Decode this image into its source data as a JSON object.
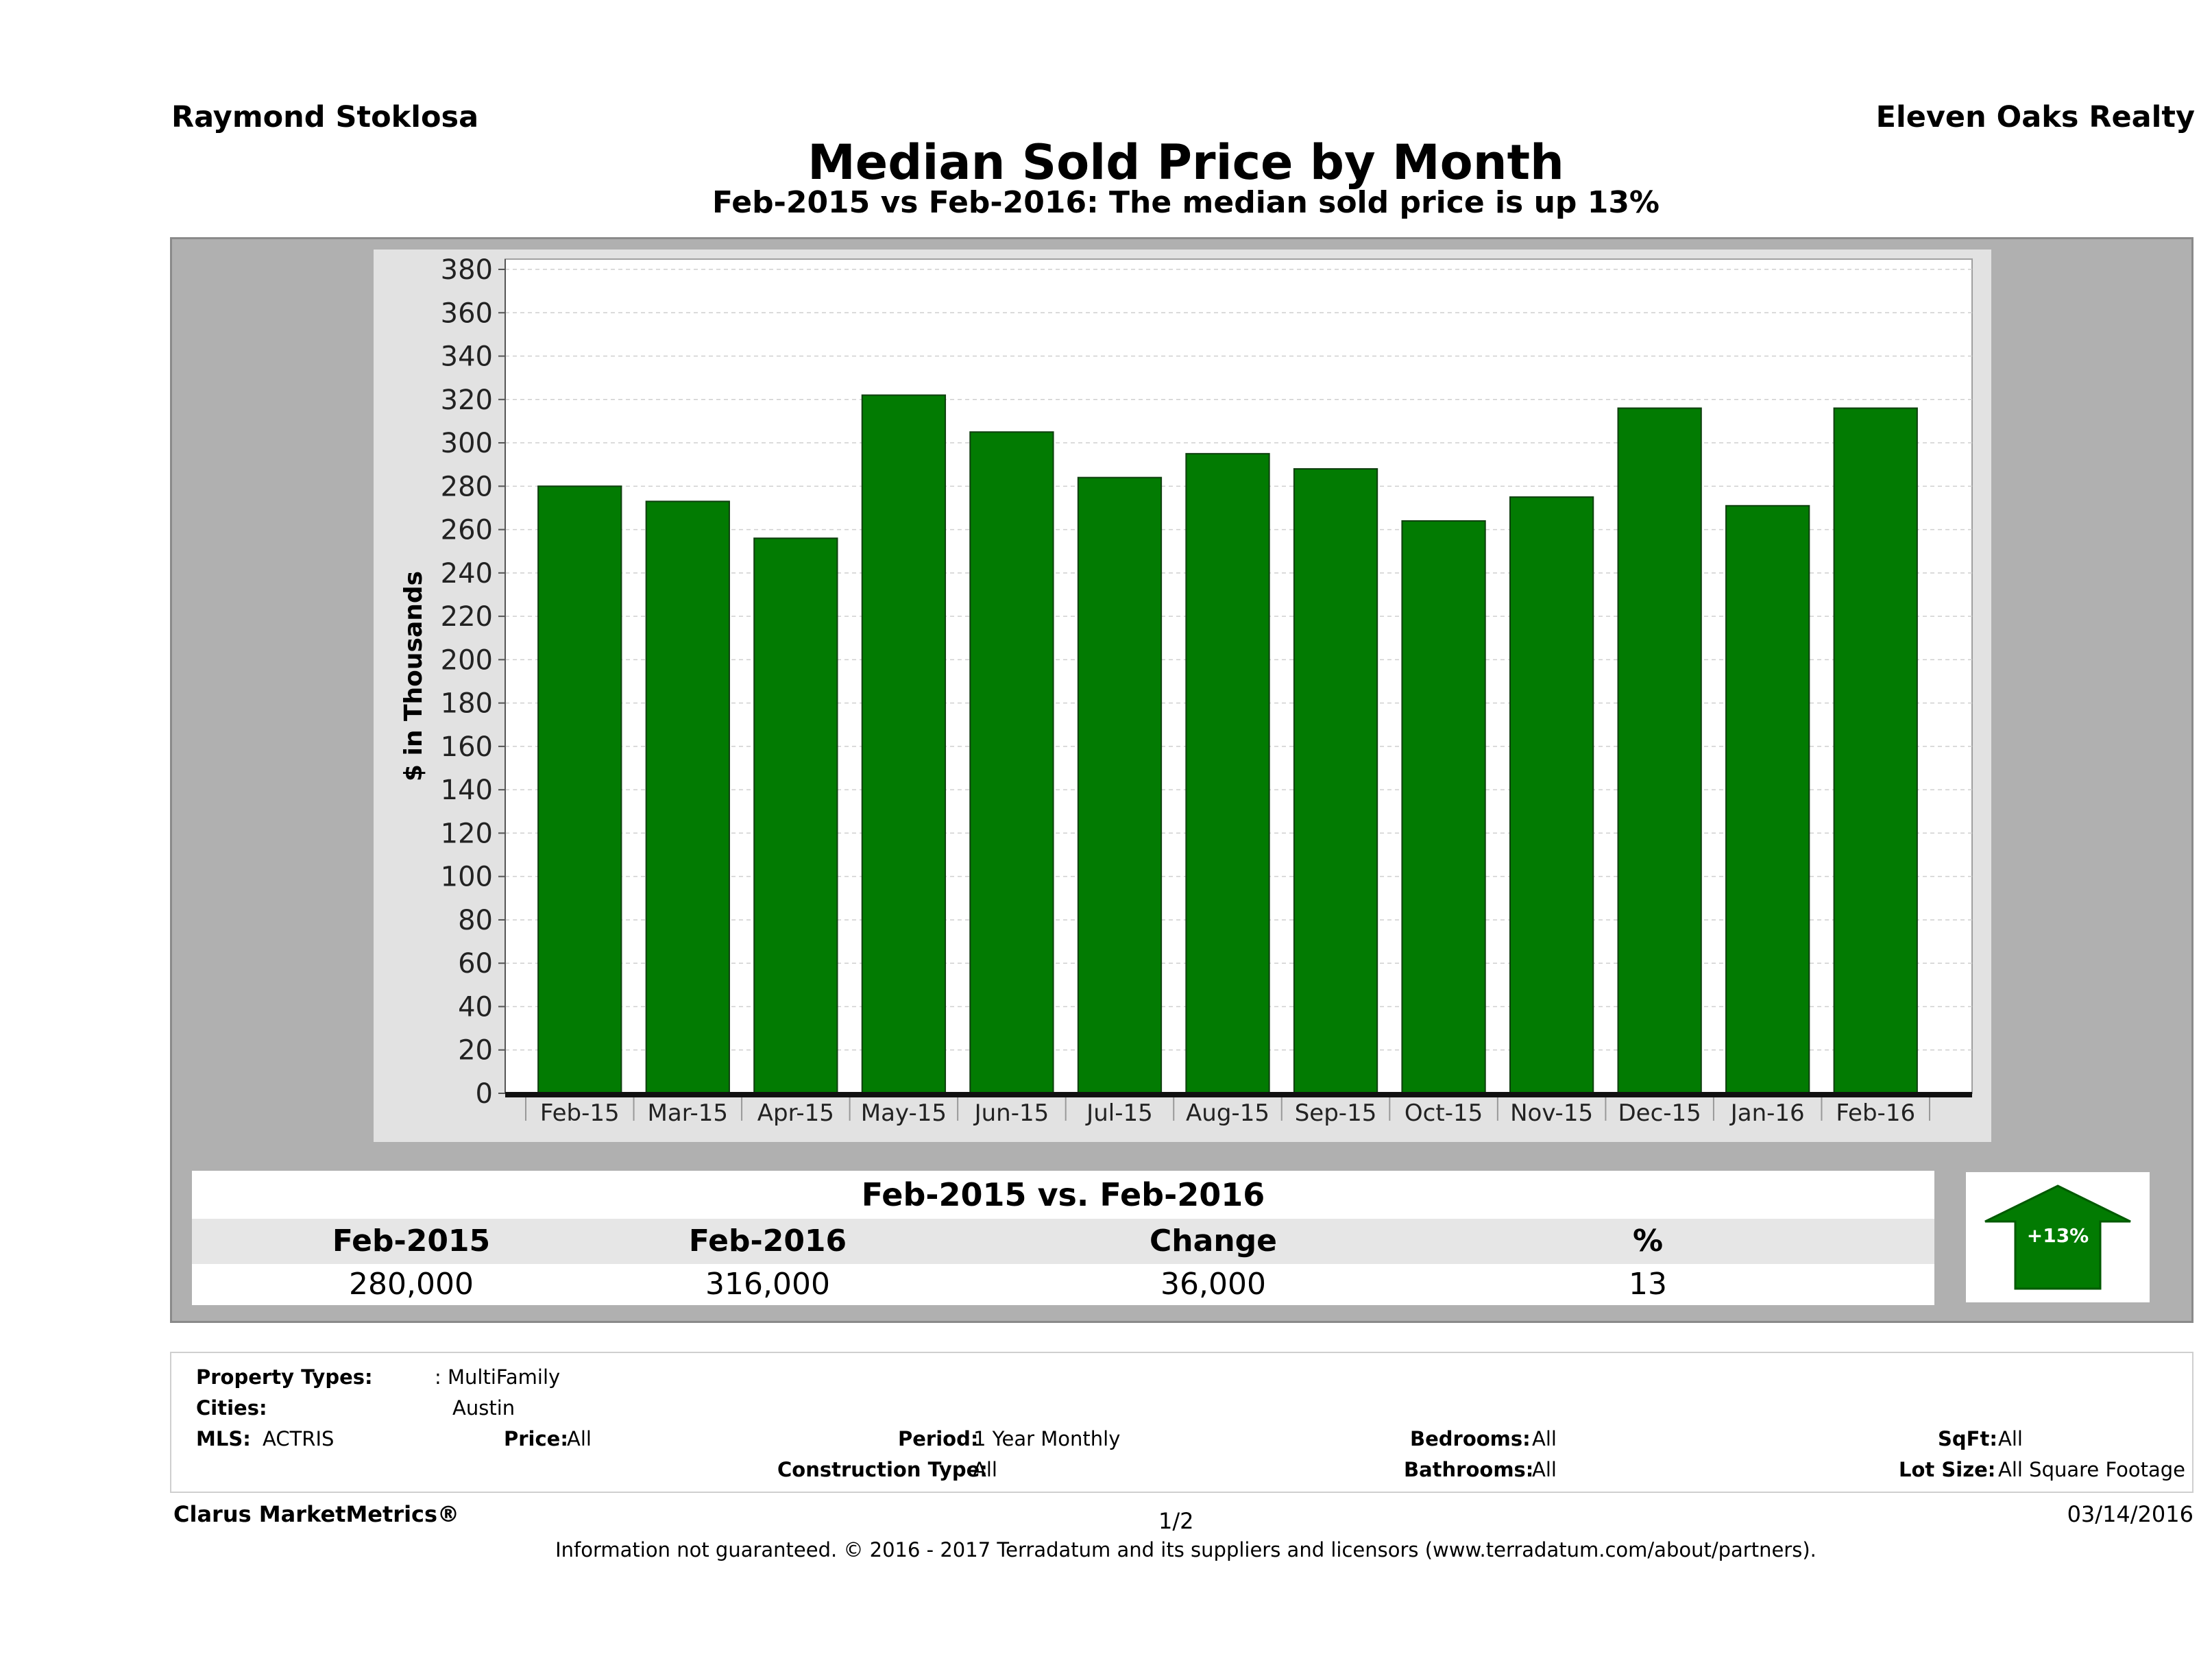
{
  "header": {
    "agent": "Raymond Stoklosa",
    "company": "Eleven Oaks Realty",
    "title": "Median Sold Price by Month",
    "subtitle": "Feb-2015 vs Feb-2016: The median sold price is up 13%"
  },
  "chart_data": {
    "type": "bar",
    "categories": [
      "Feb-15",
      "Mar-15",
      "Apr-15",
      "May-15",
      "Jun-15",
      "Jul-15",
      "Aug-15",
      "Sep-15",
      "Oct-15",
      "Nov-15",
      "Dec-15",
      "Jan-16",
      "Feb-16"
    ],
    "values": [
      280,
      273,
      256,
      322,
      305,
      284,
      295,
      288,
      264,
      275,
      316,
      271,
      316
    ],
    "title": "Median Sold Price by Month",
    "xlabel": "",
    "ylabel": "$ in Thousands",
    "ylim": [
      0,
      380
    ],
    "yticks": [
      0,
      20,
      40,
      60,
      80,
      100,
      120,
      140,
      160,
      180,
      200,
      220,
      240,
      260,
      280,
      300,
      320,
      340,
      360,
      380
    ],
    "grid": true,
    "bar_color": "#027b02"
  },
  "summary": {
    "title": "Feb-2015 vs. Feb-2016",
    "headers": [
      "Feb-2015",
      "Feb-2016",
      "Change",
      "%"
    ],
    "values": [
      "280,000",
      "316,000",
      "36,000",
      "13"
    ],
    "badge": "+13%",
    "badge_color": "#027b02"
  },
  "criteria": {
    "property_types_label": "Property Types:",
    "property_types_value": ": MultiFamily",
    "cities_label": "Cities:",
    "cities_value": "Austin",
    "mls_label": "MLS:",
    "mls_value": "ACTRIS",
    "price_label": "Price:",
    "price_value": "All",
    "period_label": "Period:",
    "period_value": "1 Year Monthly",
    "bedrooms_label": "Bedrooms:",
    "bedrooms_value": "All",
    "sqft_label": "SqFt:",
    "sqft_value": "All",
    "construction_label": "Construction Type:",
    "construction_value": "All",
    "bathrooms_label": "Bathrooms:",
    "bathrooms_value": "All",
    "lot_label": "Lot Size:",
    "lot_value": "All Square Footage"
  },
  "footer": {
    "brand": "Clarus MarketMetrics®",
    "page": "1/2",
    "date": "03/14/2016",
    "disclaimer": "Information not guaranteed. © 2016 - 2017 Terradatum and its suppliers and licensors (www.terradatum.com/about/partners)."
  }
}
